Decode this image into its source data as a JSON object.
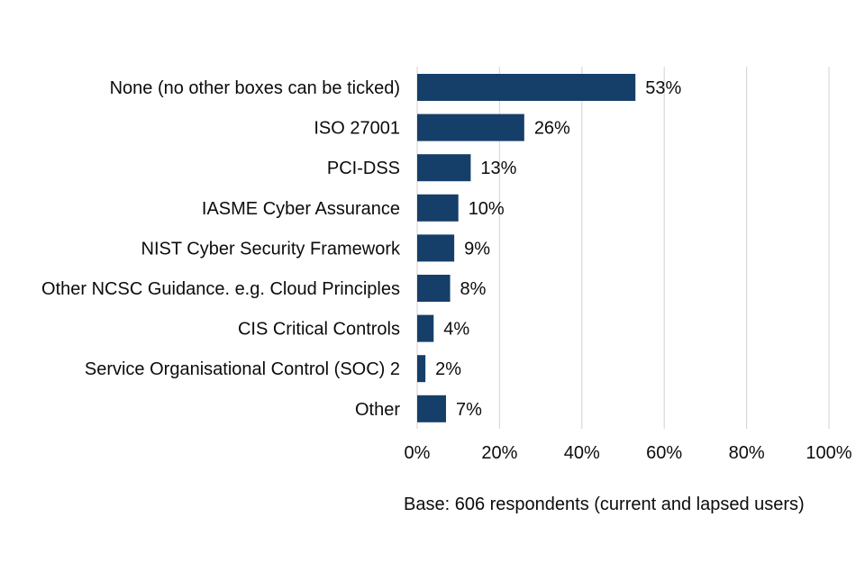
{
  "colors": {
    "bar": "#153f69",
    "grid": "#d9d9d9",
    "text": "#0b0c0c"
  },
  "chart_data": {
    "type": "bar",
    "orientation": "horizontal",
    "title": "",
    "xlabel": "",
    "ylabel": "",
    "xlim": [
      0,
      100
    ],
    "categories": [
      "None (no other boxes can be ticked)",
      "ISO 27001",
      "PCI-DSS",
      "IASME Cyber Assurance",
      "NIST Cyber Security Framework",
      "Other NCSC Guidance. e.g. Cloud Principles",
      "CIS Critical Controls",
      "Service Organisational Control (SOC) 2",
      "Other"
    ],
    "values": [
      53,
      26,
      13,
      10,
      9,
      8,
      4,
      2,
      7
    ],
    "value_labels": [
      "53%",
      "26%",
      "13%",
      "10%",
      "9%",
      "8%",
      "4%",
      "2%",
      "7%"
    ],
    "ticks": [
      0,
      20,
      40,
      60,
      80,
      100
    ],
    "tick_labels": [
      "0%",
      "20%",
      "40%",
      "60%",
      "80%",
      "100%"
    ],
    "grid": true,
    "note": "Base: 606 respondents (current and lapsed users)"
  }
}
